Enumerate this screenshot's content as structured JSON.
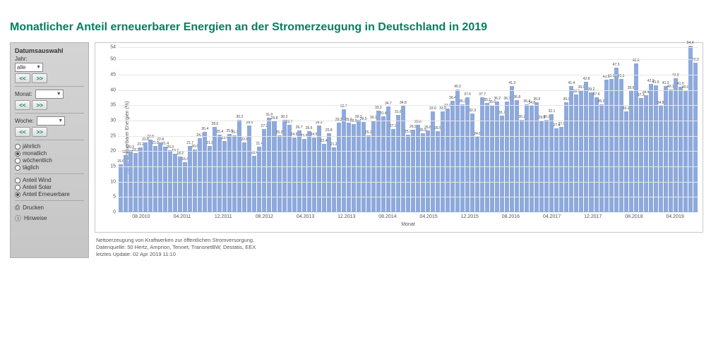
{
  "title": "Monatlicher Anteil erneuerbarer Energien an der Stromerzeugung in Deutschland in 2019",
  "sidebar": {
    "heading": "Datumsauswahl",
    "year_label": "Jahr:",
    "year_value": "alle",
    "month_label": "Monat:",
    "month_value": "",
    "week_label": "Woche:",
    "week_value": "",
    "prev": "<<",
    "next": ">>",
    "period_radios": [
      {
        "label": "jährlich",
        "checked": false
      },
      {
        "label": "monatlich",
        "checked": true
      },
      {
        "label": "wöchentlich",
        "checked": false
      },
      {
        "label": "täglich",
        "checked": false
      }
    ],
    "series_radios": [
      {
        "label": "Anteil Wind",
        "checked": false
      },
      {
        "label": "Anteil Solar",
        "checked": false
      },
      {
        "label": "Anteil Erneuerbare",
        "checked": true
      }
    ],
    "print_label": "Drucken",
    "info_label": "Hinweise"
  },
  "chart": {
    "type": "bar",
    "y_label": "Anteil erneuerbarer Energien (%)",
    "x_label": "Monat",
    "ylim": [
      0,
      54
    ],
    "ytick_step": 5,
    "bar_color": "#8ea9db",
    "grid_color": "#e6e6e6",
    "border_color": "#c8c8c8",
    "background": "#ffffff",
    "label_fontsize": 5,
    "tick_fontsize": 7,
    "x_ticks": [
      "08.2010",
      "04.2011",
      "12.2011",
      "08.2012",
      "04.2013",
      "12.2013",
      "08.2014",
      "04.2015",
      "12.2015",
      "08.2016",
      "04.2017",
      "12.2017",
      "08.2018",
      "04.2019"
    ],
    "values": [
      15.6,
      18.6,
      20.3,
      19.3,
      21.2,
      22.8,
      23.8,
      21.8,
      22.8,
      21.4,
      20.3,
      19.2,
      18.2,
      16.4,
      21.7,
      20.6,
      24.3,
      26.4,
      21.8,
      28.0,
      25.4,
      23.4,
      25.6,
      25.1,
      30.2,
      22.8,
      28.5,
      18.4,
      21.4,
      27.3,
      31.0,
      29.8,
      25.2,
      30.2,
      28.7,
      24.5,
      26.7,
      23.9,
      26.5,
      24.5,
      28.3,
      22.4,
      25.8,
      21.2,
      29.3,
      33.7,
      29.2,
      28.8,
      30.2,
      29.5,
      25.2,
      30.1,
      33.2,
      31.4,
      34.7,
      27.3,
      31.8,
      34.8,
      25.3,
      26.9,
      28.6,
      25.9,
      26.8,
      33.0,
      26.5,
      33.0,
      34.0,
      36.4,
      40.2,
      35.3,
      37.6,
      32.3,
      24.6,
      37.7,
      35.7,
      35.0,
      36.2,
      31.7,
      36.3,
      41.3,
      36.8,
      30.2,
      35.4,
      34.8,
      35.9,
      29.9,
      30.2,
      32.1,
      27.4,
      27.9,
      36.0,
      41.4,
      38.5,
      39.9,
      42.8,
      39.2,
      37.6,
      35.2,
      43.5,
      43.6,
      47.3,
      43.6,
      33.1,
      39.6,
      48.8,
      37.3,
      38.4,
      42.0,
      41.6,
      34.8,
      41.3,
      40.1,
      43.8,
      41.0,
      40.0,
      54.4,
      49.0
    ]
  },
  "footnote": {
    "line1": "Nettoerzeugung von Kraftwerken zur öffentlichen Stromversorgung.",
    "line2": "Datenquelle: 50 Hertz, Amprion, Tennet, TransnetBW, Destatis, EEX",
    "line3": "letztes Update: 02 Apr 2019 11:10"
  }
}
